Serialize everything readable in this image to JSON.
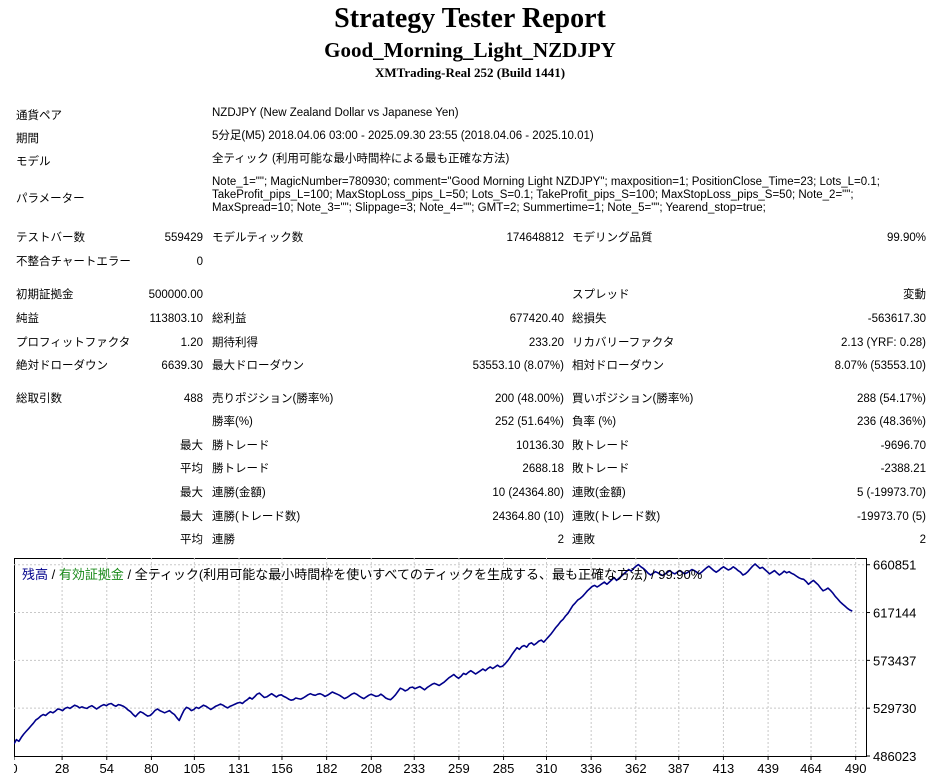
{
  "header": {
    "title": "Strategy Tester Report",
    "subtitle": "Good_Morning_Light_NZDJPY",
    "server": "XMTrading-Real 252 (Build 1441)"
  },
  "info": {
    "symbol_label": "通貨ペア",
    "symbol_value": "NZDJPY (New Zealand Dollar vs Japanese Yen)",
    "period_label": "期間",
    "period_value": "5分足(M5) 2018.04.06 03:00 - 2025.09.30 23:55 (2018.04.06 - 2025.10.01)",
    "model_label": "モデル",
    "model_value": "全ティック (利用可能な最小時間枠による最も正確な方法)",
    "params_label": "パラメーター",
    "params_value": "Note_1=\"\"; MagicNumber=780930; comment=\"Good Morning Light NZDJPY\"; maxposition=1; PositionClose_Time=23; Lots_L=0.1; TakeProfit_pips_L=100; MaxStopLoss_pips_L=50; Lots_S=0.1; TakeProfit_pips_S=100; MaxStopLoss_pips_S=50; Note_2=\"\"; MaxSpread=10; Note_3=\"\"; Slippage=3; Note_4=\"\"; GMT=2; Summertime=1; Note_5=\"\"; Yearend_stop=true;"
  },
  "stats": {
    "row1": [
      "テストバー数",
      "559429",
      "モデルティック数",
      "174648812",
      "モデリング品質",
      "99.90%"
    ],
    "row2": [
      "不整合チャートエラー",
      "0",
      "",
      "",
      "",
      ""
    ],
    "row3": [
      "初期証拠金",
      "500000.00",
      "",
      "",
      "スプレッド",
      "変動"
    ],
    "row4": [
      "純益",
      "113803.10",
      "総利益",
      "677420.40",
      "総損失",
      "-563617.30"
    ],
    "row5": [
      "プロフィットファクタ",
      "1.20",
      "期待利得",
      "233.20",
      "リカバリーファクタ",
      "2.13 (YRF: 0.28)"
    ],
    "row6": [
      "絶対ドローダウン",
      "6639.30",
      "最大ドローダウン",
      "53553.10 (8.07%)",
      "相対ドローダウン",
      "8.07% (53553.10)"
    ],
    "row7": [
      "総取引数",
      "488",
      "売りポジション(勝率%)",
      "200 (48.00%)",
      "買いポジション(勝率%)",
      "288 (54.17%)"
    ],
    "row8": [
      "",
      "",
      "勝率(%)",
      "252 (51.64%)",
      "負率 (%)",
      "236 (48.36%)"
    ],
    "row9": [
      "",
      "最大",
      "勝トレード",
      "10136.30",
      "敗トレード",
      "-9696.70"
    ],
    "row10": [
      "",
      "平均",
      "勝トレード",
      "2688.18",
      "敗トレード",
      "-2388.21"
    ],
    "row11": [
      "",
      "最大",
      "連勝(金額)",
      "10 (24364.80)",
      "連敗(金額)",
      "5 (-19973.70)"
    ],
    "row12": [
      "",
      "最大",
      "連勝(トレード数)",
      "24364.80 (10)",
      "連敗(トレード数)",
      "-19973.70 (5)"
    ],
    "row13": [
      "",
      "平均",
      "連勝",
      "2",
      "連敗",
      "2"
    ]
  },
  "legend": {
    "balance": "残高",
    "sep1": " / ",
    "equity": "有効証拠金",
    "rest": " / 全ティック(利用可能な最小時間枠を使いすべてのティックを生成する、最も正確な方法) / 99.90%"
  },
  "colors": {
    "balance": "#00008b",
    "equity": "#1a8a1a",
    "grid": "#c8c8c8"
  },
  "chart_data": {
    "type": "line",
    "series": [
      {
        "name": "残高",
        "x_range": [
          0,
          488
        ],
        "values": [
          497000,
          501000,
          499500,
          503000,
          506000,
          508500,
          511000,
          513500,
          516000,
          519000,
          520500,
          522500,
          524000,
          523000,
          525000,
          526500,
          525500,
          527000,
          529000,
          528500,
          527500,
          529500,
          530500,
          529500,
          531000,
          532500,
          531500,
          530000,
          531000,
          530000,
          529500,
          531000,
          532000,
          530500,
          529000,
          530500,
          532000,
          533000,
          532000,
          533500,
          534000,
          532500,
          531500,
          533000,
          532500,
          531500,
          530000,
          528000,
          526500,
          524000,
          522000,
          524500,
          526500,
          525500,
          524000,
          522500,
          523000,
          525000,
          527500,
          529000,
          527500,
          526500,
          525500,
          526500,
          527500,
          525500,
          524000,
          521000,
          518500,
          523500,
          528000,
          530500,
          529500,
          527500,
          528500,
          530500,
          529500,
          531000,
          532500,
          531500,
          530000,
          528500,
          530000,
          531500,
          532500,
          533500,
          532500,
          531000,
          530000,
          531500,
          532500,
          533500,
          534500,
          535000,
          534000,
          536000,
          537500,
          539500,
          538000,
          540000,
          542500,
          543500,
          541500,
          539500,
          540000,
          541500,
          543000,
          541500,
          540000,
          541500,
          542000,
          540500,
          539500,
          538000,
          537000,
          537500,
          539000,
          538500,
          538000,
          539000,
          540500,
          542000,
          543000,
          542000,
          541500,
          542500,
          543000,
          542000,
          540500,
          541500,
          543000,
          544500,
          543500,
          542500,
          541500,
          540000,
          538500,
          539500,
          541000,
          542500,
          543500,
          542500,
          541000,
          539500,
          538500,
          540000,
          541500,
          542500,
          541500,
          540500,
          541000,
          542500,
          541000,
          539000,
          538000,
          537500,
          539500,
          542000,
          545000,
          548000,
          547000,
          545500,
          546500,
          548500,
          549000,
          547500,
          548500,
          549500,
          548000,
          546500,
          548500,
          550000,
          551500,
          552500,
          551500,
          550500,
          552000,
          553500,
          555500,
          557500,
          559000,
          560500,
          558500,
          557000,
          559000,
          561500,
          560500,
          562500,
          564000,
          562500,
          561000,
          562500,
          564000,
          565500,
          564000,
          566000,
          567500,
          566000,
          567500,
          569000,
          567500,
          568000,
          570000,
          572500,
          575500,
          579000,
          582000,
          585000,
          583500,
          586000,
          587000,
          585500,
          588500,
          589500,
          587500,
          589000,
          591000,
          592000,
          590000,
          592500,
          595000,
          597500,
          600500,
          603500,
          606000,
          609000,
          611000,
          614000,
          616500,
          620000,
          623500,
          626000,
          628500,
          630000,
          632000,
          634500,
          637000,
          639000,
          641000,
          642000,
          640500,
          642000,
          643500,
          645000,
          643000,
          645000,
          647000,
          649000,
          646500,
          648500,
          650500,
          652500,
          654500,
          656500,
          655000,
          657500,
          659500,
          661000,
          659000,
          657500,
          655500,
          653000,
          651500,
          653000,
          654500,
          653500,
          652000,
          651000,
          652500,
          654000,
          655500,
          653500,
          652500,
          654000,
          655500,
          654000,
          652500,
          653500,
          655000,
          656500,
          655500,
          654000,
          652500,
          654000,
          656000,
          658000,
          659500,
          657500,
          655500,
          654000,
          655500,
          657500,
          659000,
          657500,
          656000,
          657000,
          659000,
          657500,
          655500,
          654000,
          651500,
          652500,
          654500,
          657000,
          659500,
          661500,
          659500,
          657500,
          658500,
          656500,
          654500,
          652500,
          654000,
          655500,
          653500,
          651500,
          653000,
          655000,
          653500,
          654500,
          653000,
          652000,
          650500,
          649000,
          648000,
          647500,
          645500,
          643000,
          645000,
          646500,
          644500,
          642500,
          639500,
          637000,
          638000,
          639500,
          637500,
          635000,
          632000,
          629500,
          627000,
          625000,
          623000,
          621000,
          619500,
          618500
        ]
      },
      {
        "name": "有効証拠金",
        "values": []
      }
    ],
    "x_ticks": [
      0,
      28,
      54,
      80,
      105,
      131,
      156,
      182,
      208,
      233,
      259,
      285,
      310,
      336,
      362,
      387,
      413,
      439,
      464,
      490
    ],
    "y_ticks": [
      486023,
      529730,
      573437,
      617144,
      660851
    ],
    "ylim": [
      486023,
      667000
    ],
    "grid": true
  }
}
